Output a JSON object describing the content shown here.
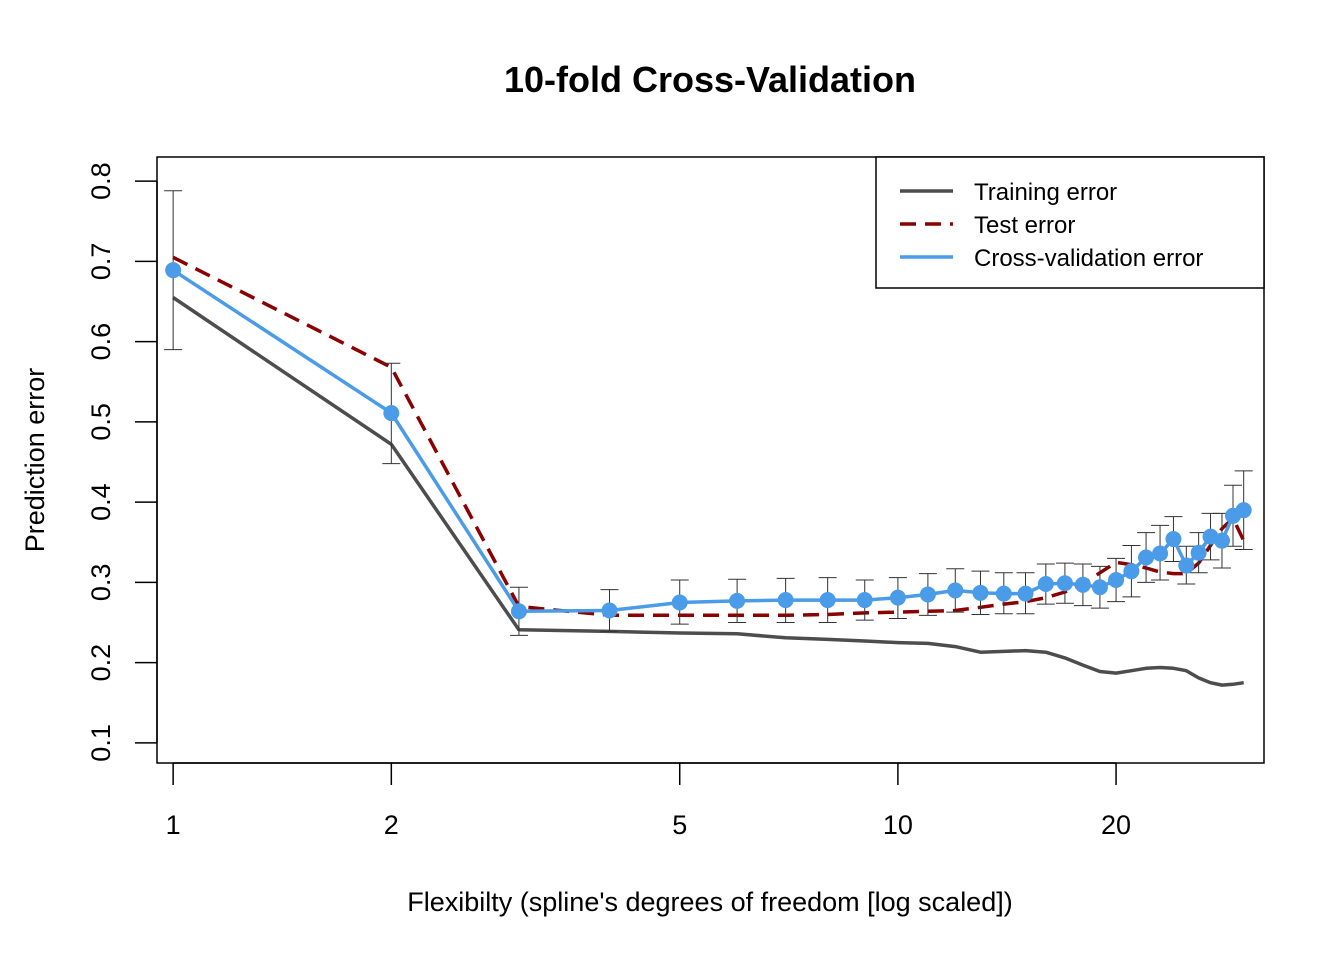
{
  "chart_data": {
    "type": "line",
    "title": "10-fold Cross-Validation",
    "xlabel": "Flexibilty (spline's degrees of freedom [log scaled])",
    "ylabel": "Prediction error",
    "x_scale": "log",
    "xlim": [
      0.95,
      32
    ],
    "ylim": [
      0.075,
      0.83
    ],
    "x_ticks": [
      1,
      2,
      5,
      10,
      20
    ],
    "x_tick_labels": [
      "1",
      "2",
      "5",
      "10",
      "20"
    ],
    "y_ticks": [
      0.1,
      0.2,
      0.3,
      0.4,
      0.5,
      0.6,
      0.7,
      0.8
    ],
    "y_tick_labels": [
      "0.1",
      "0.2",
      "0.3",
      "0.4",
      "0.5",
      "0.6",
      "0.7",
      "0.8"
    ],
    "grid": false,
    "legend_position": "top-right",
    "legend": [
      "Training error",
      "Test error",
      "Cross-validation error"
    ],
    "x": [
      1,
      2,
      3,
      4,
      5,
      6,
      7,
      8,
      9,
      10,
      11,
      12,
      13,
      14,
      15,
      16,
      17,
      18,
      19,
      20,
      21,
      22,
      23,
      24,
      25,
      26,
      27,
      28,
      29,
      30
    ],
    "series": [
      {
        "name": "Training error",
        "color": "#4d4d4d",
        "style": "solid",
        "values": [
          0.655,
          0.472,
          0.241,
          0.239,
          0.237,
          0.236,
          0.231,
          0.229,
          0.227,
          0.225,
          0.224,
          0.22,
          0.213,
          0.214,
          0.215,
          0.213,
          0.206,
          0.197,
          0.189,
          0.187,
          0.19,
          0.193,
          0.194,
          0.193,
          0.19,
          0.181,
          0.175,
          0.172,
          0.173,
          0.175
        ]
      },
      {
        "name": "Test error",
        "color": "#8b0000",
        "style": "dashed",
        "values": [
          0.705,
          0.568,
          0.27,
          0.259,
          0.259,
          0.259,
          0.259,
          0.26,
          0.262,
          0.263,
          0.264,
          0.265,
          0.269,
          0.273,
          0.276,
          0.281,
          0.288,
          0.298,
          0.312,
          0.325,
          0.322,
          0.318,
          0.313,
          0.311,
          0.311,
          0.324,
          0.346,
          0.367,
          0.38,
          0.352
        ]
      },
      {
        "name": "Cross-validation error",
        "color": "#4a9be8",
        "style": "solid-points",
        "values": [
          0.689,
          0.511,
          0.264,
          0.265,
          0.275,
          0.277,
          0.278,
          0.278,
          0.278,
          0.281,
          0.285,
          0.29,
          0.287,
          0.286,
          0.286,
          0.298,
          0.299,
          0.297,
          0.294,
          0.303,
          0.314,
          0.331,
          0.336,
          0.354,
          0.321,
          0.337,
          0.357,
          0.352,
          0.383,
          0.39
        ],
        "error_low": [
          0.59,
          0.448,
          0.234,
          0.239,
          0.248,
          0.25,
          0.25,
          0.25,
          0.253,
          0.255,
          0.259,
          0.263,
          0.26,
          0.261,
          0.261,
          0.273,
          0.274,
          0.271,
          0.268,
          0.276,
          0.282,
          0.3,
          0.303,
          0.326,
          0.298,
          0.312,
          0.328,
          0.318,
          0.345,
          0.341
        ],
        "error_high": [
          0.788,
          0.573,
          0.294,
          0.291,
          0.303,
          0.304,
          0.305,
          0.306,
          0.303,
          0.306,
          0.311,
          0.317,
          0.314,
          0.312,
          0.312,
          0.323,
          0.324,
          0.323,
          0.32,
          0.33,
          0.346,
          0.362,
          0.371,
          0.382,
          0.345,
          0.362,
          0.386,
          0.386,
          0.421,
          0.439
        ]
      }
    ]
  }
}
